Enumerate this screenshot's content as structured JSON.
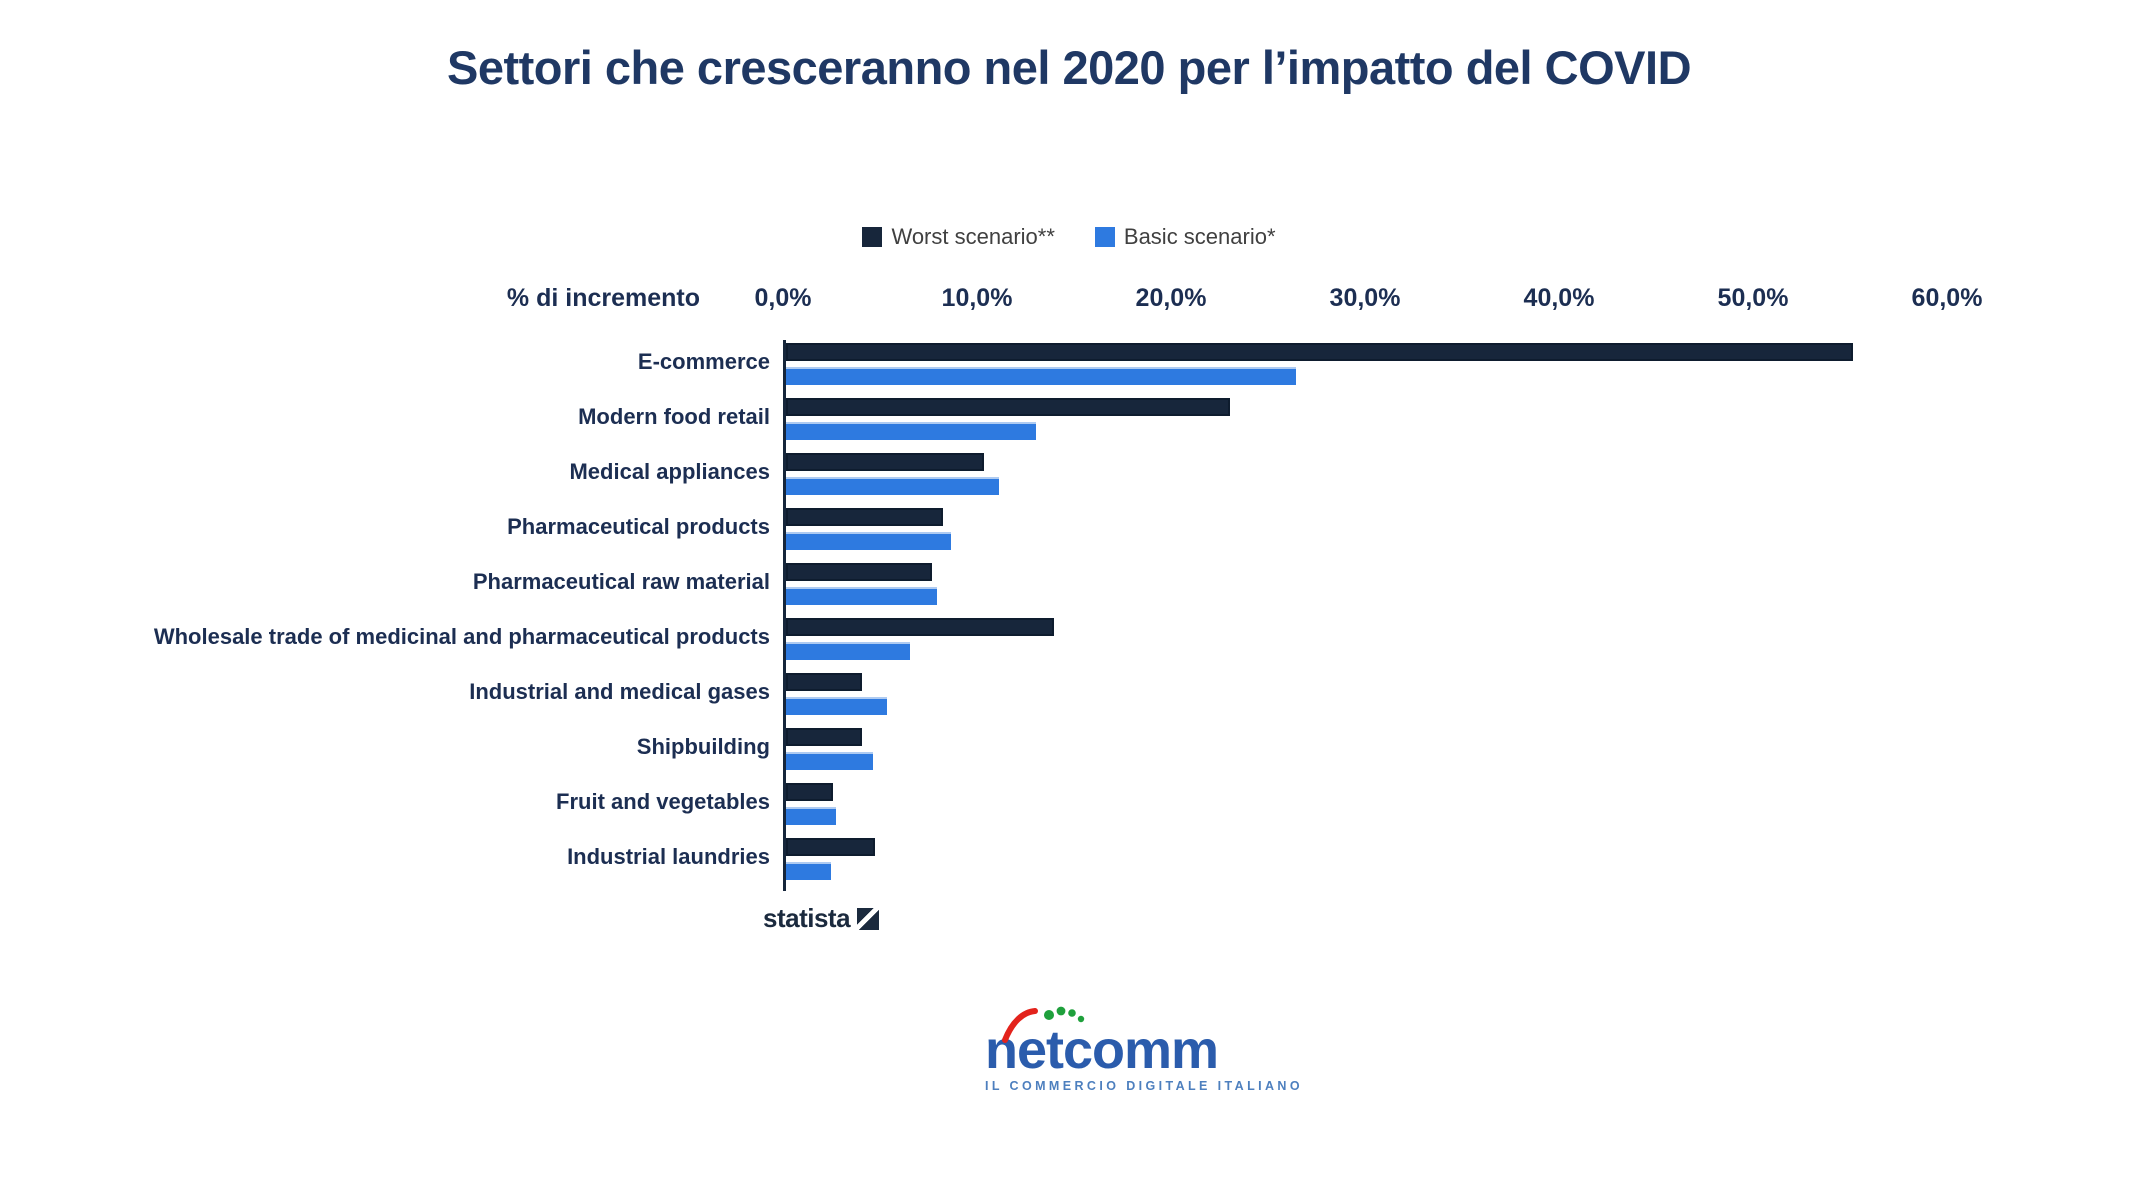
{
  "title": {
    "text": "Settori che cresceranno nel 2020 per l’impatto del COVID",
    "color": "#1F3864"
  },
  "chart_data": {
    "type": "bar",
    "orientation": "horizontal",
    "title": "Settori che cresceranno nel 2020 per l’impatto del COVID",
    "xlabel": "% di incremento",
    "xlim": [
      0,
      60
    ],
    "x_ticks": [
      "0,0%",
      "10,0%",
      "20,0%",
      "30,0%",
      "40,0%",
      "50,0%",
      "60,0%"
    ],
    "grid": false,
    "legend_position": "top",
    "categories": [
      "E-commerce",
      "Modern food retail",
      "Medical appliances",
      "Pharmaceutical products",
      "Pharmaceutical raw material",
      "Wholesale trade of medicinal and pharmaceutical products",
      "Industrial and medical gases",
      "Shipbuilding",
      "Fruit and vegetables",
      "Industrial laundries"
    ],
    "series": [
      {
        "name": "Worst scenario**",
        "color": "#17263B",
        "values": [
          55.0,
          22.9,
          10.2,
          8.1,
          7.5,
          13.8,
          3.9,
          3.9,
          2.4,
          4.6
        ]
      },
      {
        "name": "Basic scenario*",
        "color": "#2E7AE0",
        "values": [
          26.3,
          12.9,
          11.0,
          8.5,
          7.8,
          6.4,
          5.2,
          4.5,
          2.6,
          2.3
        ]
      }
    ]
  },
  "footer": {
    "statista_label": "statista",
    "netcomm_wordmark": "netcomm",
    "netcomm_tagline": "IL COMMERCIO DIGITALE ITALIANO",
    "colors": {
      "statista_dark": "#1B2A3E",
      "netcomm_blue": "#2B5CAC",
      "netcomm_red": "#E3231C",
      "netcomm_green": "#1FA03C"
    }
  }
}
